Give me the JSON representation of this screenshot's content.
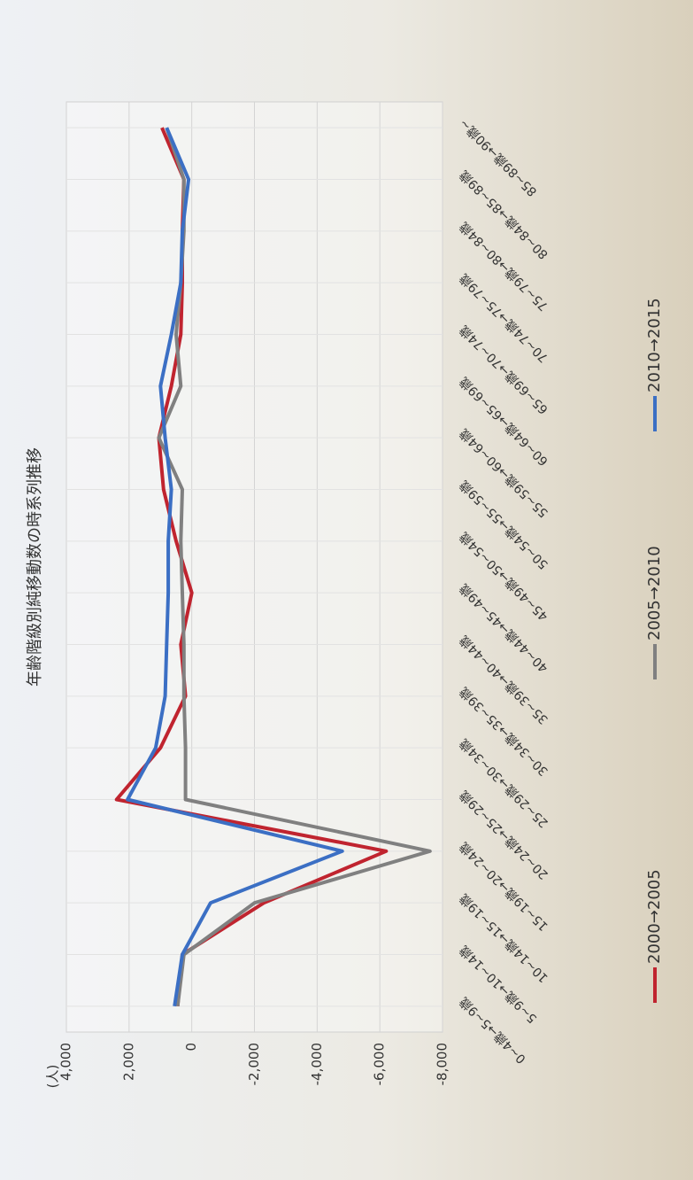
{
  "chart_data": {
    "type": "line",
    "title": "年齢階級別純移動数の時系列推移",
    "y_label": "(人)",
    "categories": [
      "0~4歳→5~9歳",
      "5~9歳→10~14歳",
      "10~14歳→15~19歳",
      "15~19歳→20~24歳",
      "20~24歳→25~29歳",
      "25~29歳→30~34歳",
      "30~34歳→35~39歳",
      "35~39歳→40~44歳",
      "40~44歳→45~49歳",
      "45~49歳→50~54歳",
      "50~54歳→55~59歳",
      "55~59歳→60~64歳",
      "60~64歳→65~69歳",
      "65~69歳→70~74歳",
      "70~74歳→75~79歳",
      "75~79歳→80~84歳",
      "80~84歳→85~89歳",
      "85~89歳→90歳~"
    ],
    "series": [
      {
        "name": "2000→2005",
        "color": "#c0242f",
        "values": [
          450,
          300,
          -2300,
          -6200,
          2400,
          1000,
          200,
          350,
          0,
          500,
          900,
          1050,
          650,
          350,
          300,
          300,
          250,
          950
        ]
      },
      {
        "name": "2005→2010",
        "color": "#808080",
        "values": [
          450,
          250,
          -2000,
          -7600,
          200,
          200,
          250,
          250,
          300,
          350,
          300,
          1050,
          350,
          500,
          350,
          250,
          250,
          800
        ]
      },
      {
        "name": "2010→2015",
        "color": "#3b6fc4",
        "values": [
          550,
          300,
          -600,
          -4800,
          2050,
          1150,
          850,
          800,
          750,
          750,
          650,
          850,
          1000,
          650,
          350,
          300,
          100,
          800
        ]
      }
    ],
    "ylim": [
      -8000,
      4000
    ],
    "yticks": [
      {
        "value": 4000,
        "label": "4,000"
      },
      {
        "value": 2000,
        "label": "2,000"
      },
      0,
      {
        "value": -2000,
        "label": "-2,000"
      },
      {
        "value": -4000,
        "label": "-4,000"
      },
      {
        "value": -6000,
        "label": "-6,000"
      },
      {
        "value": -8000,
        "label": "-8,000"
      }
    ],
    "grid": true
  }
}
